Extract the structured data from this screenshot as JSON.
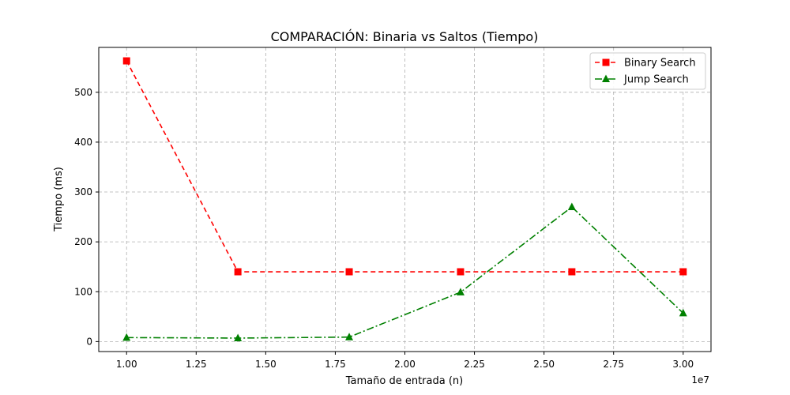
{
  "chart_data": {
    "type": "line",
    "title": "COMPARACIÓN: Binaria vs Saltos (Tiempo)",
    "xlabel": "Tamaño de entrada (n)",
    "ylabel": "Tiempo (ms)",
    "x_offset_label": "1e7",
    "x": [
      10000000,
      14000000,
      18000000,
      22000000,
      26000000,
      30000000
    ],
    "xlim": [
      9000000,
      31000000
    ],
    "ylim": [
      -20,
      590
    ],
    "x_ticks": [
      10000000,
      12500000,
      15000000,
      17500000,
      20000000,
      22500000,
      25000000,
      27500000,
      30000000
    ],
    "x_tick_labels": [
      "1.00",
      "1.25",
      "1.50",
      "1.75",
      "2.00",
      "2.25",
      "2.50",
      "2.75",
      "3.00"
    ],
    "y_ticks": [
      0,
      100,
      200,
      300,
      400,
      500
    ],
    "y_tick_labels": [
      "0",
      "100",
      "200",
      "300",
      "400",
      "500"
    ],
    "grid": true,
    "legend_position": "top-right",
    "series": [
      {
        "name": "Binary Search",
        "values": [
          563,
          140,
          140,
          140,
          140,
          140
        ],
        "color": "#ff0000",
        "marker": "square",
        "line_style": "dashed"
      },
      {
        "name": "Jump Search",
        "values": [
          8,
          7,
          9,
          99,
          270,
          57
        ],
        "color": "#008000",
        "marker": "triangle",
        "line_style": "dashdot"
      }
    ]
  }
}
